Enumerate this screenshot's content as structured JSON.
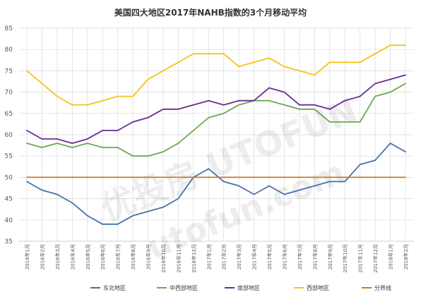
{
  "chart_data": {
    "type": "line",
    "title": "美国四大地区2017年NAHB指数的3个月移动平均",
    "xlabel": "",
    "ylabel": "",
    "ylim": [
      35,
      85
    ],
    "yticks": [
      35,
      40,
      45,
      50,
      55,
      60,
      65,
      70,
      75,
      80,
      85
    ],
    "grid": true,
    "legend_position": "bottom",
    "categories": [
      "2016年1月",
      "2016年2月",
      "2016年3月",
      "2016年4月",
      "2016年5月",
      "2016年6月",
      "2016年7月",
      "2016年8月",
      "2016年9月",
      "2016年10月",
      "2016年11月",
      "2016年12月",
      "2017年1月",
      "2017年2月",
      "2017年3月",
      "2017年4月",
      "2017年5月",
      "2017年6月",
      "2017年7月",
      "2017年8月",
      "2017年9月",
      "2017年10月",
      "2017年11月",
      "2017年12月",
      "2018年1月",
      "2018年2月"
    ],
    "series": [
      {
        "name": "东北地区",
        "color": "#4472a8",
        "values": [
          49,
          47,
          46,
          44,
          41,
          39,
          39,
          41,
          42,
          43,
          45,
          50,
          52,
          49,
          48,
          46,
          48,
          46,
          47,
          48,
          49,
          49,
          53,
          54,
          58,
          56
        ]
      },
      {
        "name": "中西部地区",
        "color": "#6aa84f",
        "values": [
          58,
          57,
          58,
          57,
          58,
          57,
          57,
          55,
          55,
          56,
          58,
          61,
          64,
          65,
          67,
          68,
          68,
          67,
          66,
          66,
          63,
          63,
          63,
          69,
          70,
          72
        ]
      },
      {
        "name": "南部地区",
        "color": "#6a2c91",
        "values": [
          61,
          59,
          59,
          58,
          59,
          61,
          61,
          63,
          64,
          66,
          66,
          67,
          68,
          67,
          68,
          68,
          71,
          70,
          67,
          67,
          66,
          68,
          69,
          72,
          73,
          74
        ]
      },
      {
        "name": "西部地区",
        "color": "#f2c418",
        "values": [
          75,
          72,
          69,
          67,
          67,
          68,
          69,
          69,
          73,
          75,
          77,
          79,
          79,
          79,
          76,
          77,
          78,
          76,
          75,
          74,
          77,
          77,
          77,
          79,
          81,
          81
        ]
      },
      {
        "name": "分界线",
        "color": "#c77a2c",
        "values": [
          50,
          50,
          50,
          50,
          50,
          50,
          50,
          50,
          50,
          50,
          50,
          50,
          50,
          50,
          50,
          50,
          50,
          50,
          50,
          50,
          50,
          50,
          50,
          50,
          50,
          50
        ]
      }
    ],
    "watermark": "优投房 UTOFUN  utofun.com"
  }
}
